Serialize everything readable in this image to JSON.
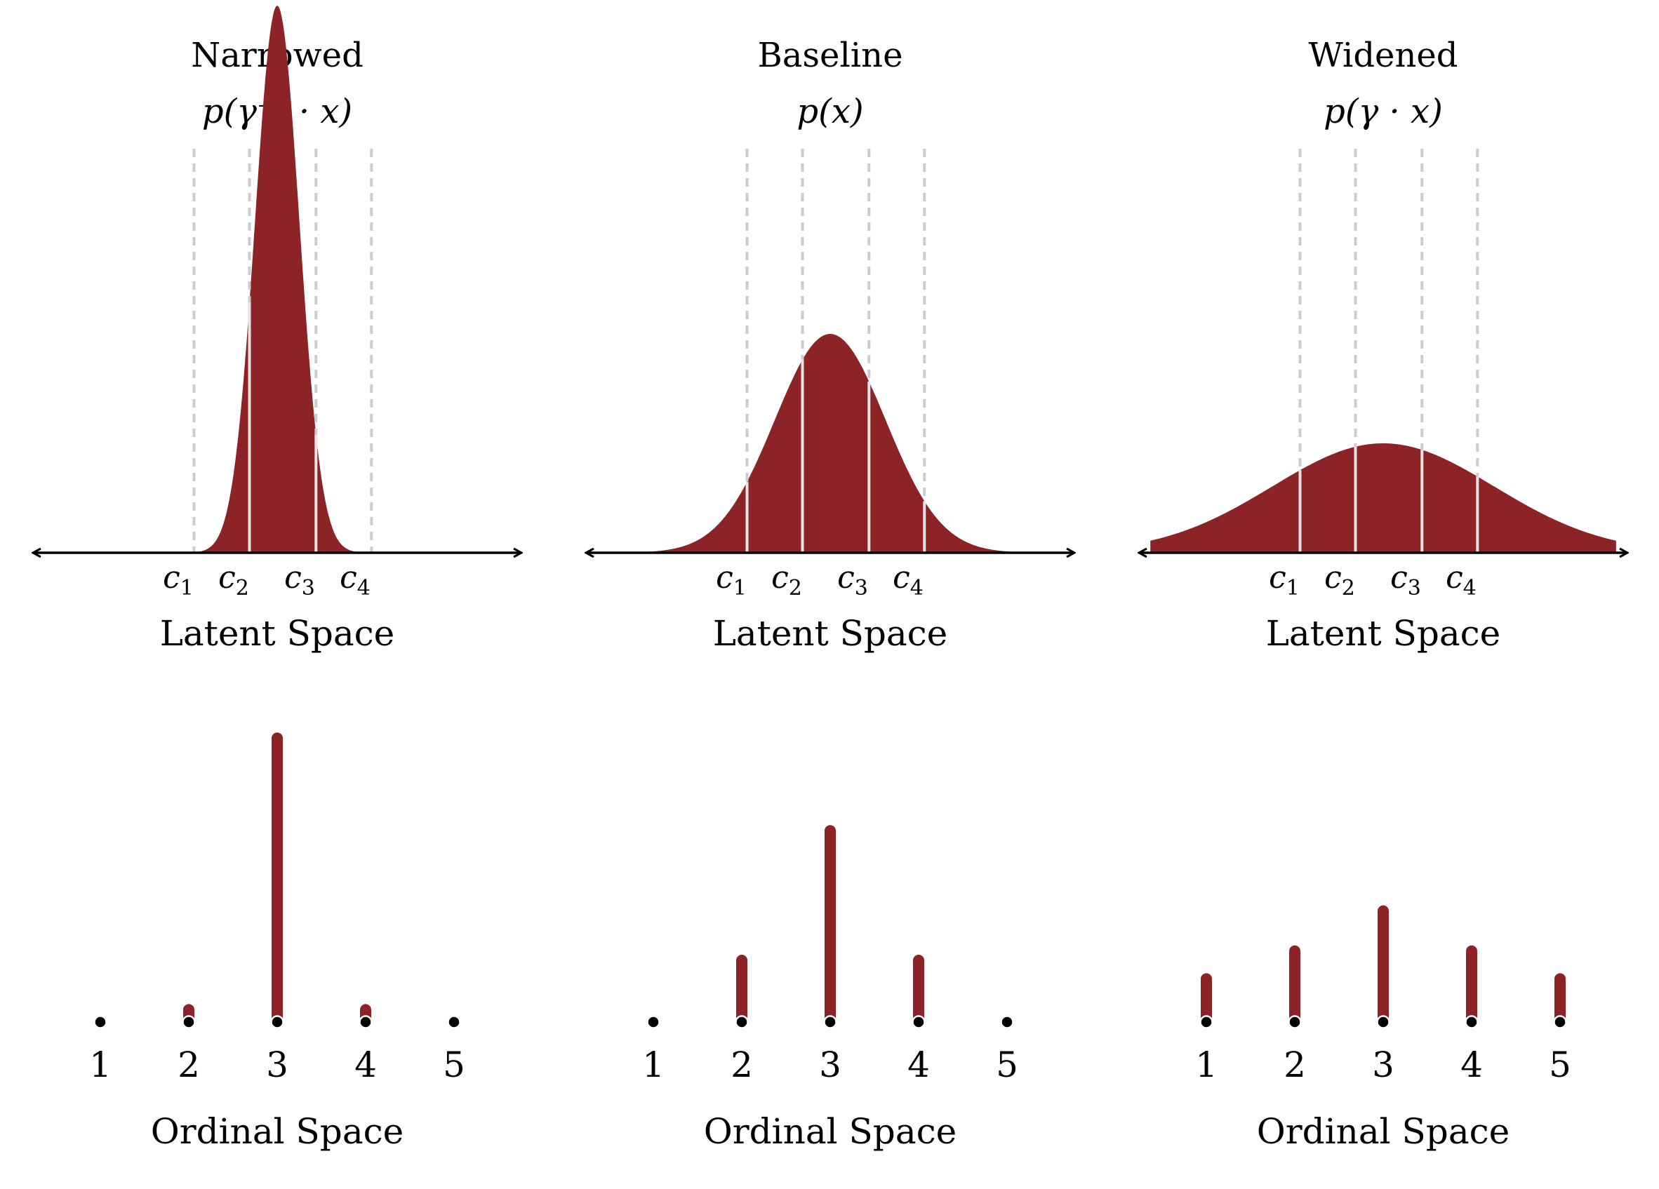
{
  "colors": {
    "fill": "#8c2427",
    "cut_line": "#cccccc",
    "axis": "#000000",
    "background": "#ffffff"
  },
  "panels": [
    {
      "title": "Narrowed",
      "formula": "p(γ⁻¹ · x)",
      "cutpoint_labels": [
        "c",
        "c",
        "c",
        "c"
      ],
      "cutpoint_subscripts": [
        "1",
        "2",
        "3",
        "4"
      ],
      "latent_label": "Latent Space",
      "ordinal_label": "Ordinal Space",
      "ordinal_values": [
        "1",
        "2",
        "3",
        "4",
        "5"
      ]
    },
    {
      "title": "Baseline",
      "formula": "p(x)",
      "cutpoint_labels": [
        "c",
        "c",
        "c",
        "c"
      ],
      "cutpoint_subscripts": [
        "1",
        "2",
        "3",
        "4"
      ],
      "latent_label": "Latent Space",
      "ordinal_label": "Ordinal Space",
      "ordinal_values": [
        "1",
        "2",
        "3",
        "4",
        "5"
      ]
    },
    {
      "title": "Widened",
      "formula": "p(γ · x)",
      "cutpoint_labels": [
        "c",
        "c",
        "c",
        "c"
      ],
      "cutpoint_subscripts": [
        "1",
        "2",
        "3",
        "4"
      ],
      "latent_label": "Latent Space",
      "ordinal_label": "Ordinal Space",
      "ordinal_values": [
        "1",
        "2",
        "3",
        "4",
        "5"
      ]
    }
  ],
  "chart_data": [
    {
      "type": "area",
      "panel": "Narrowed",
      "cutpoints": [
        -1.5,
        -0.5,
        0.7,
        1.7
      ],
      "mean": 0,
      "scale": 0.4
    },
    {
      "type": "area",
      "panel": "Baseline",
      "cutpoints": [
        -1.5,
        -0.5,
        0.7,
        1.7
      ],
      "mean": 0,
      "scale": 1.0
    },
    {
      "type": "area",
      "panel": "Widened",
      "cutpoints": [
        -1.5,
        -0.5,
        0.7,
        1.7
      ],
      "mean": 0,
      "scale": 2.0
    },
    {
      "type": "bar",
      "panel": "Narrowed",
      "categories": [
        "1",
        "2",
        "3",
        "4",
        "5"
      ],
      "values": [
        0.0,
        0.04,
        0.92,
        0.04,
        0.0
      ]
    },
    {
      "type": "bar",
      "panel": "Baseline",
      "categories": [
        "1",
        "2",
        "3",
        "4",
        "5"
      ],
      "values": [
        0.004,
        0.2,
        0.62,
        0.2,
        0.004
      ]
    },
    {
      "type": "bar",
      "panel": "Widened",
      "categories": [
        "1",
        "2",
        "3",
        "4",
        "5"
      ],
      "values": [
        0.14,
        0.23,
        0.36,
        0.23,
        0.14
      ]
    }
  ]
}
